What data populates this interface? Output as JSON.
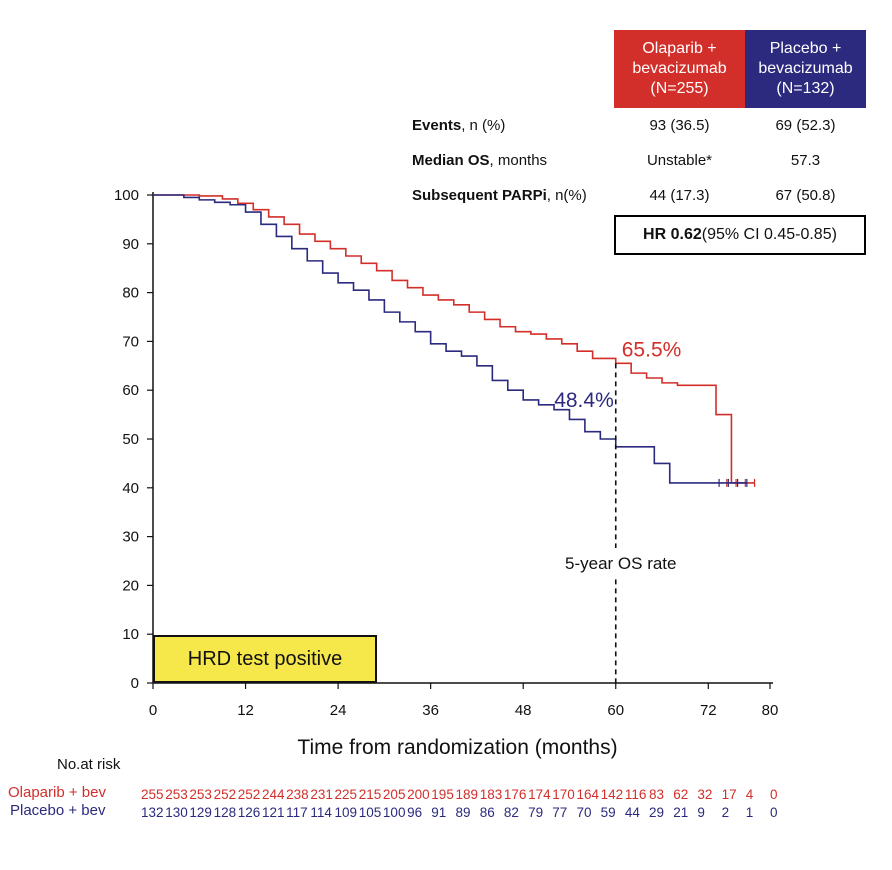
{
  "header": {
    "olaparib": [
      "Olaparib +",
      "bevacizumab",
      "(N=255)"
    ],
    "placebo": [
      "Placebo +",
      "bevacizumab",
      "(N=132)"
    ]
  },
  "stats": [
    {
      "label_bold": "Events",
      "label_rest": ", n (%)",
      "olaparib": "93 (36.5)",
      "placebo": "69 (52.3)"
    },
    {
      "label_bold": "Median OS",
      "label_rest": ", months",
      "olaparib": "Unstable*",
      "placebo": "57.3"
    },
    {
      "label_bold": "Subsequent PARPi",
      "label_rest": ", n(%)",
      "olaparib": "44 (17.3)",
      "placebo": "67 (50.8)"
    }
  ],
  "hr": {
    "bold": "HR 0.62",
    "rest": " (95% CI 0.45-0.85)"
  },
  "hrd_label": "HRD test positive",
  "annotations": {
    "olaparib_rate": "65.5%",
    "placebo_rate": "48.4%",
    "five_year": "5-year OS rate"
  },
  "risk_table": {
    "title": "No.at risk",
    "olaparib_label": "Olaparib + bev",
    "placebo_label": "Placebo + bev",
    "olaparib_values": [
      "255",
      "253",
      "253",
      "252",
      "252",
      "244",
      "238",
      "231",
      "225",
      "215",
      "205",
      "200",
      "195",
      "189",
      "183",
      "176",
      "174",
      "170",
      "164",
      "142",
      "116",
      "83",
      "62",
      "32",
      "17",
      "4",
      "0"
    ],
    "placebo_values": [
      "132",
      "130",
      "129",
      "128",
      "126",
      "121",
      "117",
      "114",
      "109",
      "105",
      "100",
      "96",
      "91",
      "89",
      "86",
      "82",
      "79",
      "77",
      "70",
      "59",
      "44",
      "29",
      "21",
      "9",
      "2",
      "1",
      "0"
    ]
  },
  "colors": {
    "olaparib": "#d32f2a",
    "placebo": "#2b2a7f",
    "hrd_box": "#f6e84a"
  },
  "chart_data": {
    "type": "line",
    "xlabel": "Time from randomization (months)",
    "ylabel": "",
    "xlim": [
      0,
      80
    ],
    "ylim": [
      0,
      100
    ],
    "xticks": [
      0,
      12,
      24,
      36,
      48,
      60,
      72,
      80
    ],
    "yticks": [
      0,
      10,
      20,
      30,
      40,
      50,
      60,
      70,
      80,
      90,
      100
    ],
    "reference_x": 60,
    "series": [
      {
        "name": "Olaparib + bevacizumab",
        "points": [
          [
            0,
            100
          ],
          [
            2,
            100
          ],
          [
            6,
            99.8
          ],
          [
            9,
            99.2
          ],
          [
            11,
            98.3
          ],
          [
            13,
            97
          ],
          [
            15,
            95.5
          ],
          [
            17,
            94
          ],
          [
            19,
            92
          ],
          [
            21,
            90.5
          ],
          [
            23,
            89
          ],
          [
            25,
            87.5
          ],
          [
            27,
            86
          ],
          [
            29,
            84.5
          ],
          [
            31,
            82.5
          ],
          [
            33,
            81
          ],
          [
            35,
            79.5
          ],
          [
            37,
            78.5
          ],
          [
            39,
            77.5
          ],
          [
            41,
            76
          ],
          [
            43,
            74.5
          ],
          [
            45,
            73
          ],
          [
            47,
            72
          ],
          [
            49,
            71.5
          ],
          [
            51,
            70.5
          ],
          [
            53,
            69.5
          ],
          [
            55,
            68
          ],
          [
            57,
            66.5
          ],
          [
            60,
            65.5
          ],
          [
            62,
            63.5
          ],
          [
            64,
            62.5
          ],
          [
            66,
            61.5
          ],
          [
            68,
            61
          ],
          [
            73,
            61
          ],
          [
            73,
            55
          ],
          [
            75,
            55
          ],
          [
            75,
            41
          ],
          [
            78,
            41
          ]
        ]
      },
      {
        "name": "Placebo + bevacizumab",
        "points": [
          [
            0,
            100
          ],
          [
            4,
            99.5
          ],
          [
            6,
            99
          ],
          [
            8,
            98.5
          ],
          [
            10,
            98
          ],
          [
            12,
            96.5
          ],
          [
            14,
            94
          ],
          [
            16,
            91.5
          ],
          [
            18,
            89
          ],
          [
            20,
            86.5
          ],
          [
            22,
            84
          ],
          [
            24,
            82
          ],
          [
            26,
            80.5
          ],
          [
            28,
            78.5
          ],
          [
            30,
            76
          ],
          [
            32,
            74
          ],
          [
            34,
            72
          ],
          [
            36,
            69.5
          ],
          [
            38,
            68
          ],
          [
            40,
            67
          ],
          [
            42,
            65
          ],
          [
            44,
            62
          ],
          [
            46,
            60
          ],
          [
            48,
            58
          ],
          [
            50,
            57
          ],
          [
            52,
            56
          ],
          [
            54,
            54
          ],
          [
            56,
            51.5
          ],
          [
            58,
            50
          ],
          [
            60,
            48.4
          ],
          [
            65,
            48.4
          ],
          [
            65,
            45
          ],
          [
            67,
            43
          ],
          [
            67,
            41
          ],
          [
            77,
            41
          ]
        ]
      }
    ]
  }
}
